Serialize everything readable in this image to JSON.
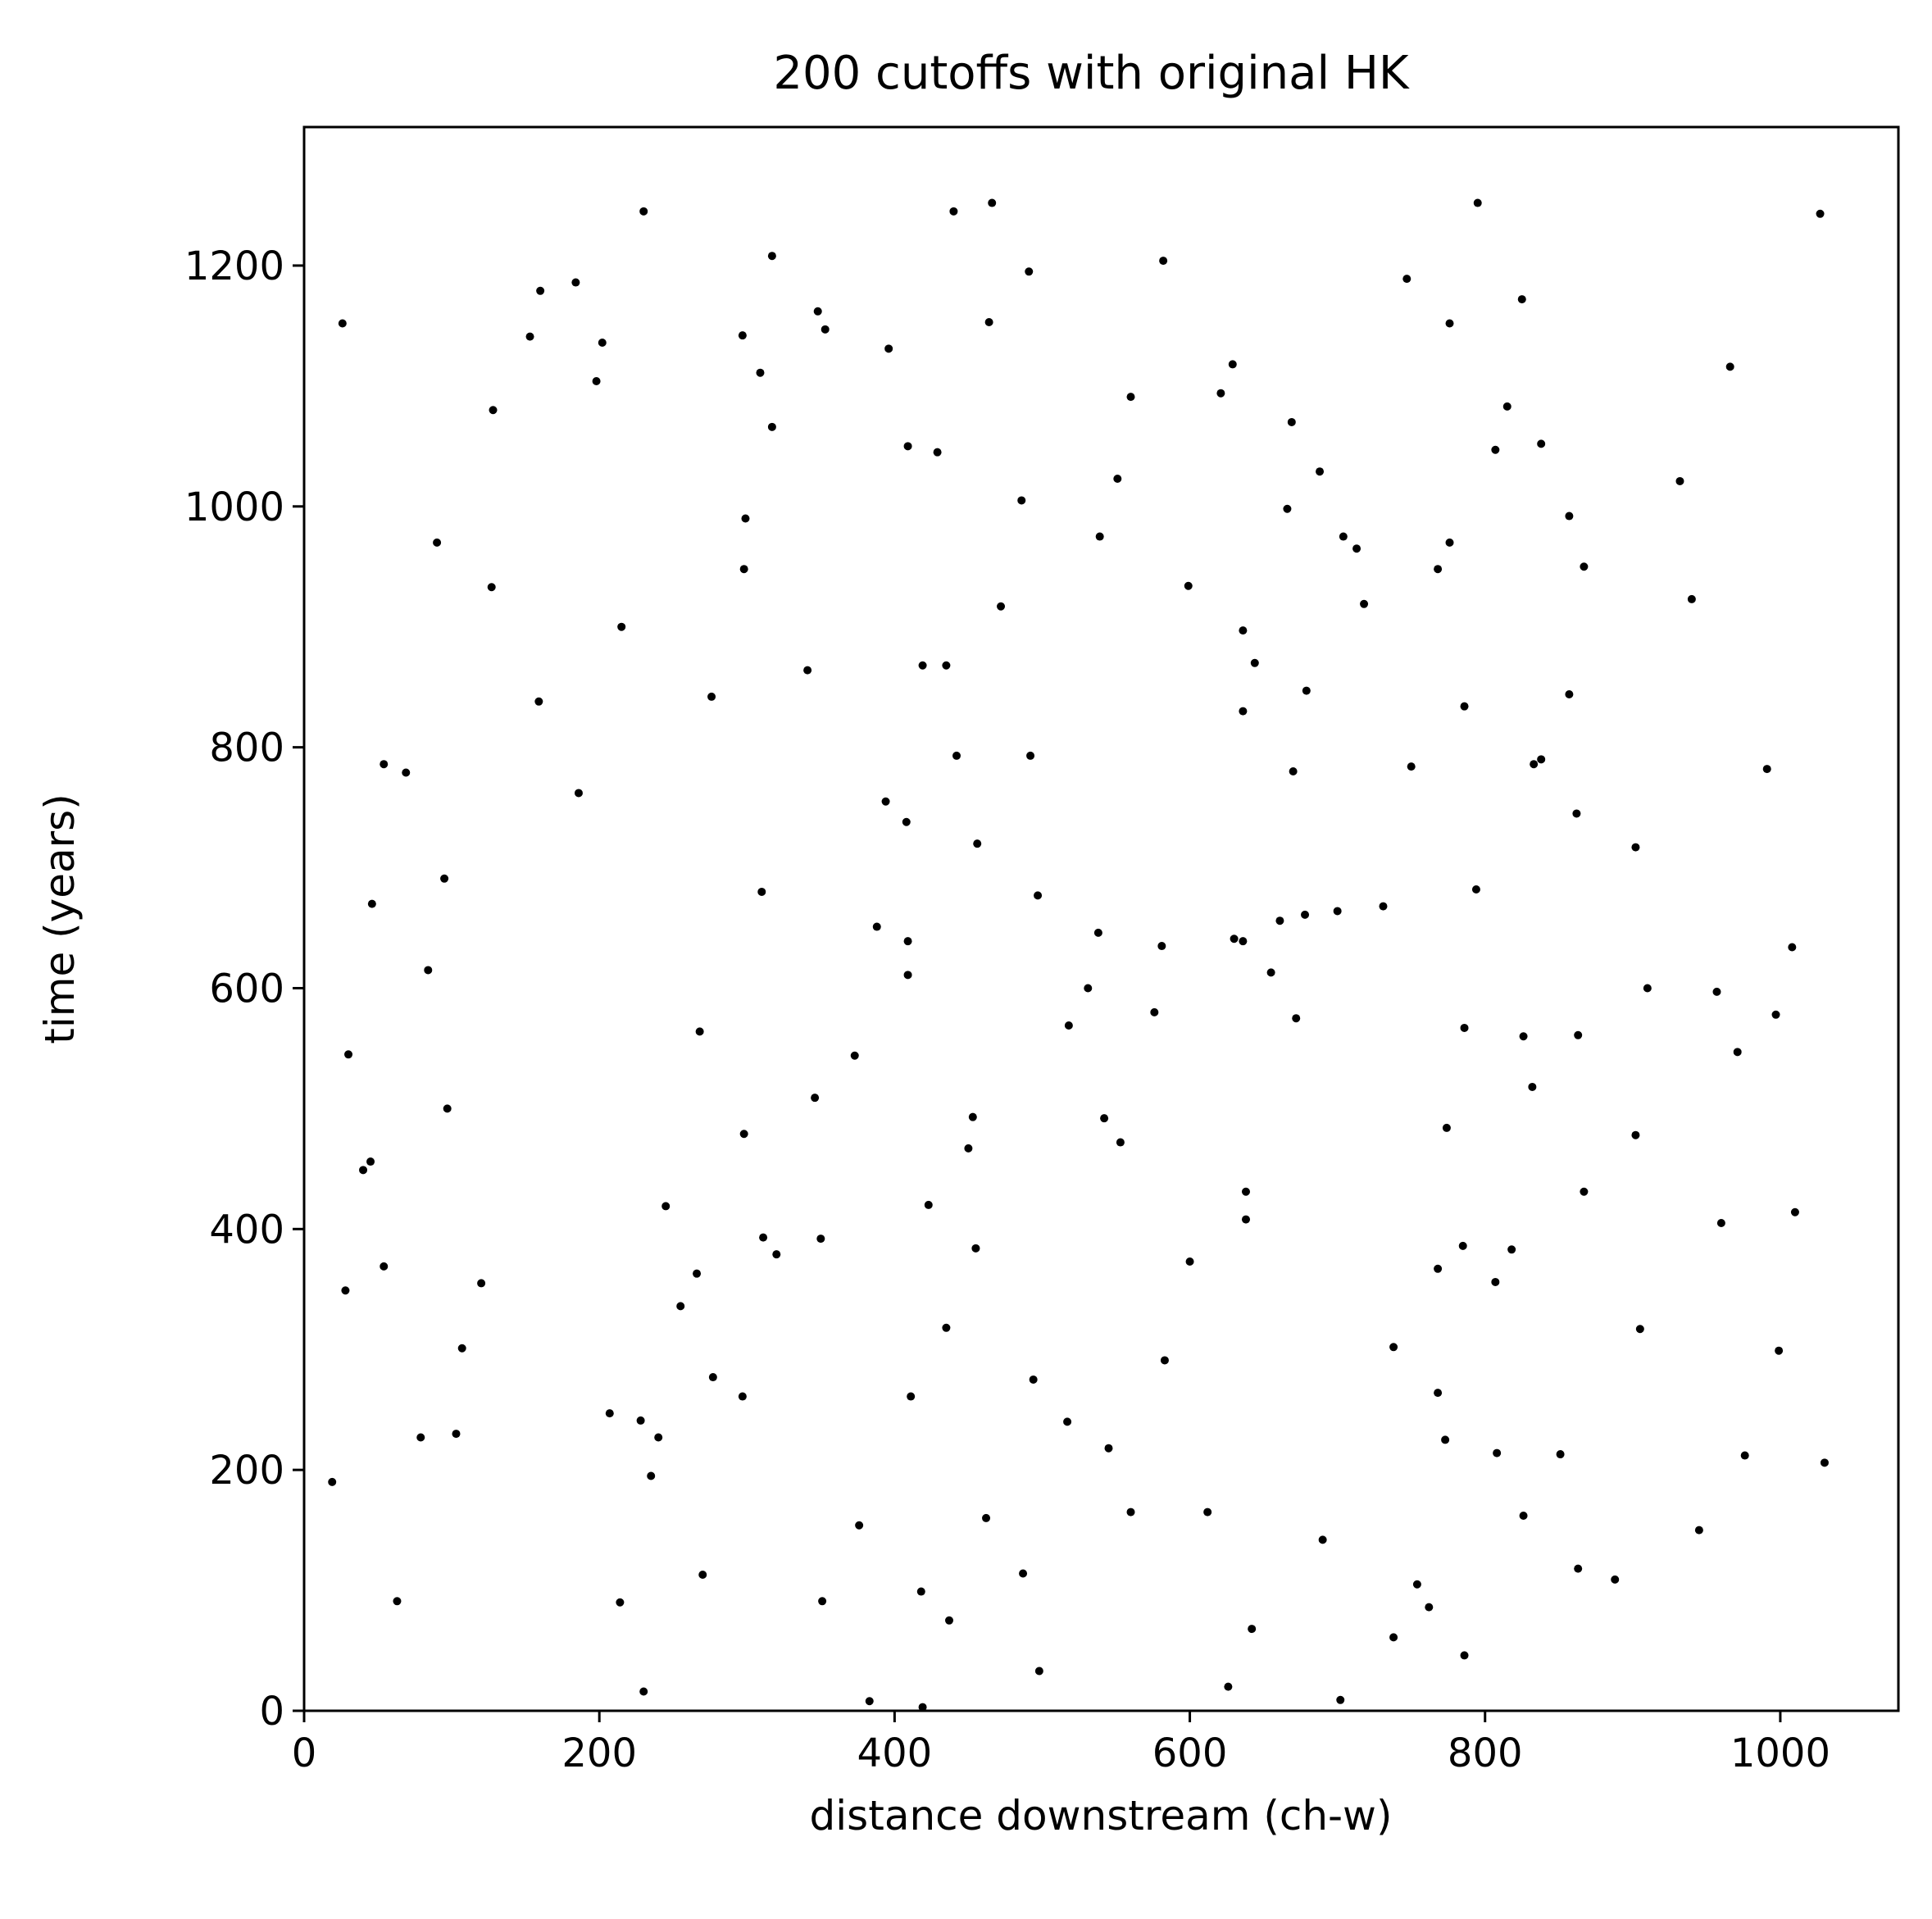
{
  "chart_data": {
    "type": "scatter",
    "title": "200 cutoffs with original HK",
    "xlabel": "distance downstream (ch-w)",
    "ylabel": "time (years)",
    "xlim": [
      0,
      1080
    ],
    "ylim": [
      0,
      1315
    ],
    "xticks": [
      0,
      200,
      400,
      600,
      800,
      1000
    ],
    "yticks": [
      0,
      200,
      400,
      600,
      800,
      1000,
      1200
    ],
    "grid": false,
    "legend": "none",
    "marker_color": "#000000",
    "series": [
      {
        "points": [
          [
            230,
            1245
          ],
          [
            440,
            1245
          ],
          [
            466,
            1252
          ],
          [
            795,
            1252
          ],
          [
            1027,
            1243
          ],
          [
            26,
            1152
          ],
          [
            160,
            1179
          ],
          [
            184,
            1186
          ],
          [
            317,
            1208
          ],
          [
            491,
            1195
          ],
          [
            582,
            1204
          ],
          [
            747,
            1189
          ],
          [
            825,
            1172
          ],
          [
            153,
            1141
          ],
          [
            202,
            1136
          ],
          [
            198,
            1104
          ],
          [
            297,
            1142
          ],
          [
            348,
            1162
          ],
          [
            353,
            1147
          ],
          [
            309,
            1111
          ],
          [
            396,
            1131
          ],
          [
            464,
            1153
          ],
          [
            629,
            1118
          ],
          [
            776,
            1152
          ],
          [
            966,
            1116
          ],
          [
            128,
            1080
          ],
          [
            317,
            1066
          ],
          [
            409,
            1050
          ],
          [
            429,
            1045
          ],
          [
            560,
            1091
          ],
          [
            621,
            1094
          ],
          [
            669,
            1070
          ],
          [
            815,
            1083
          ],
          [
            807,
            1047
          ],
          [
            838,
            1052
          ],
          [
            551,
            1023
          ],
          [
            688,
            1029
          ],
          [
            932,
            1021
          ],
          [
            486,
            1005
          ],
          [
            666,
            998
          ],
          [
            299,
            990
          ],
          [
            857,
            992
          ],
          [
            90,
            970
          ],
          [
            539,
            975
          ],
          [
            704,
            975
          ],
          [
            713,
            965
          ],
          [
            776,
            970
          ],
          [
            298,
            948
          ],
          [
            599,
            934
          ],
          [
            768,
            948
          ],
          [
            867,
            950
          ],
          [
            127,
            933
          ],
          [
            472,
            917
          ],
          [
            718,
            919
          ],
          [
            940,
            923
          ],
          [
            215,
            900
          ],
          [
            636,
            897
          ],
          [
            341,
            864
          ],
          [
            419,
            868
          ],
          [
            435,
            868
          ],
          [
            644,
            870
          ],
          [
            159,
            838
          ],
          [
            276,
            842
          ],
          [
            636,
            830
          ],
          [
            679,
            847
          ],
          [
            786,
            834
          ],
          [
            857,
            844
          ],
          [
            54,
            786
          ],
          [
            69,
            779
          ],
          [
            186,
            762
          ],
          [
            442,
            793
          ],
          [
            492,
            793
          ],
          [
            670,
            780
          ],
          [
            750,
            784
          ],
          [
            833,
            786
          ],
          [
            838,
            790
          ],
          [
            991,
            782
          ],
          [
            394,
            755
          ],
          [
            408,
            738
          ],
          [
            456,
            720
          ],
          [
            862,
            745
          ],
          [
            902,
            717
          ],
          [
            794,
            682
          ],
          [
            95,
            691
          ],
          [
            310,
            680
          ],
          [
            497,
            677
          ],
          [
            46,
            670
          ],
          [
            388,
            651
          ],
          [
            538,
            646
          ],
          [
            630,
            641
          ],
          [
            636,
            639
          ],
          [
            661,
            656
          ],
          [
            678,
            661
          ],
          [
            700,
            664
          ],
          [
            731,
            668
          ],
          [
            409,
            639
          ],
          [
            581,
            635
          ],
          [
            1008,
            634
          ],
          [
            84,
            615
          ],
          [
            409,
            611
          ],
          [
            655,
            613
          ],
          [
            531,
            600
          ],
          [
            910,
            600
          ],
          [
            957,
            597
          ],
          [
            576,
            580
          ],
          [
            672,
            575
          ],
          [
            997,
            578
          ],
          [
            268,
            564
          ],
          [
            518,
            569
          ],
          [
            786,
            567
          ],
          [
            826,
            560
          ],
          [
            863,
            561
          ],
          [
            30,
            545
          ],
          [
            373,
            544
          ],
          [
            971,
            547
          ],
          [
            832,
            518
          ],
          [
            346,
            509
          ],
          [
            97,
            500
          ],
          [
            542,
            492
          ],
          [
            453,
            493
          ],
          [
            298,
            479
          ],
          [
            553,
            472
          ],
          [
            774,
            484
          ],
          [
            902,
            478
          ],
          [
            450,
            467
          ],
          [
            45,
            456
          ],
          [
            40,
            449
          ],
          [
            638,
            431
          ],
          [
            867,
            431
          ],
          [
            245,
            419
          ],
          [
            423,
            420
          ],
          [
            638,
            408
          ],
          [
            1010,
            414
          ],
          [
            960,
            405
          ],
          [
            311,
            393
          ],
          [
            350,
            392
          ],
          [
            320,
            379
          ],
          [
            455,
            384
          ],
          [
            785,
            386
          ],
          [
            818,
            383
          ],
          [
            600,
            373
          ],
          [
            768,
            367
          ],
          [
            807,
            356
          ],
          [
            54,
            369
          ],
          [
            120,
            355
          ],
          [
            266,
            363
          ],
          [
            28,
            349
          ],
          [
            255,
            336
          ],
          [
            107,
            301
          ],
          [
            435,
            318
          ],
          [
            738,
            302
          ],
          [
            905,
            317
          ],
          [
            999,
            299
          ],
          [
            583,
            291
          ],
          [
            277,
            277
          ],
          [
            494,
            275
          ],
          [
            297,
            261
          ],
          [
            411,
            261
          ],
          [
            768,
            264
          ],
          [
            207,
            247
          ],
          [
            228,
            241
          ],
          [
            240,
            227
          ],
          [
            517,
            240
          ],
          [
            79,
            227
          ],
          [
            103,
            230
          ],
          [
            773,
            225
          ],
          [
            545,
            218
          ],
          [
            808,
            214
          ],
          [
            851,
            213
          ],
          [
            976,
            212
          ],
          [
            1030,
            206
          ],
          [
            19,
            190
          ],
          [
            235,
            195
          ],
          [
            560,
            165
          ],
          [
            612,
            165
          ],
          [
            826,
            162
          ],
          [
            462,
            160
          ],
          [
            376,
            154
          ],
          [
            690,
            142
          ],
          [
            945,
            150
          ],
          [
            270,
            113
          ],
          [
            487,
            114
          ],
          [
            863,
            118
          ],
          [
            888,
            109
          ],
          [
            754,
            105
          ],
          [
            418,
            99
          ],
          [
            762,
            86
          ],
          [
            63,
            91
          ],
          [
            214,
            90
          ],
          [
            351,
            91
          ],
          [
            437,
            75
          ],
          [
            642,
            68
          ],
          [
            738,
            61
          ],
          [
            786,
            46
          ],
          [
            498,
            33
          ],
          [
            230,
            16
          ],
          [
            383,
            8
          ],
          [
            419,
            3
          ],
          [
            626,
            20
          ],
          [
            702,
            9
          ]
        ]
      }
    ]
  }
}
